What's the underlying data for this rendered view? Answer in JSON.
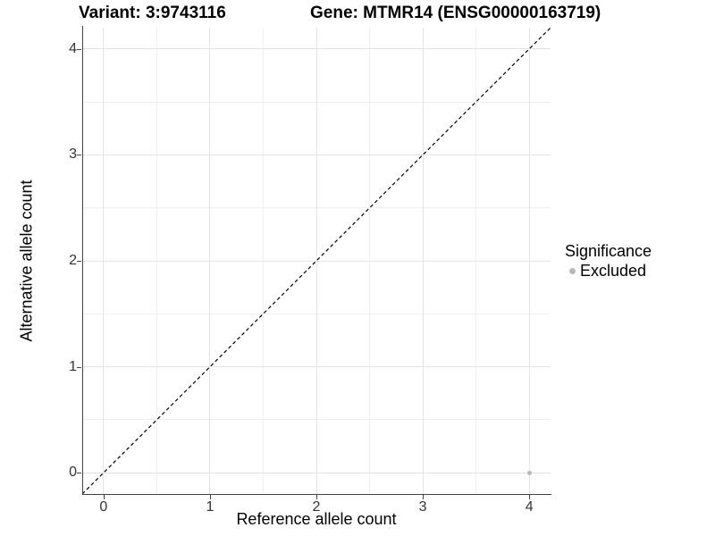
{
  "colors": {
    "background": "#ffffff",
    "axis_line": "#444444",
    "grid_major": "#e5e5e5",
    "grid_minor": "#f0f0f0",
    "tick_text": "#333333",
    "title_text": "#000000",
    "excluded_gray": "#b8b8b8",
    "reference_line": "#000000"
  },
  "chart_data": {
    "type": "scatter",
    "titles": [
      "Variant: 3:9743116",
      "Gene: MTMR14 (ENSG00000163719)"
    ],
    "xlabel": "Reference allele count",
    "ylabel": "Alternative allele count",
    "xlim": [
      -0.2,
      4.2
    ],
    "ylim": [
      -0.2,
      4.2
    ],
    "x_ticks": [
      0,
      1,
      2,
      3,
      4
    ],
    "y_ticks": [
      0,
      1,
      2,
      3,
      4
    ],
    "x_minor_ticks": [
      0.5,
      1.5,
      2.5,
      3.5
    ],
    "y_minor_ticks": [
      0.5,
      1.5,
      2.5,
      3.5
    ],
    "grid": "major and minor, light gray on white panel",
    "series": [
      {
        "name": "Excluded",
        "marker": "circle",
        "marker_color": "#b8b8b8",
        "points": [
          {
            "x": 4,
            "y": 0
          }
        ]
      }
    ],
    "reference_line": {
      "meaning": "identity line y = x",
      "style": "dashed",
      "color": "#000000",
      "from": {
        "x": -0.2,
        "y": -0.2
      },
      "to": {
        "x": 4.2,
        "y": 4.2
      }
    },
    "legend": {
      "title": "Significance",
      "position": "right-center",
      "items": [
        {
          "label": "Excluded",
          "color": "#b8b8b8",
          "marker": "circle"
        }
      ]
    }
  }
}
